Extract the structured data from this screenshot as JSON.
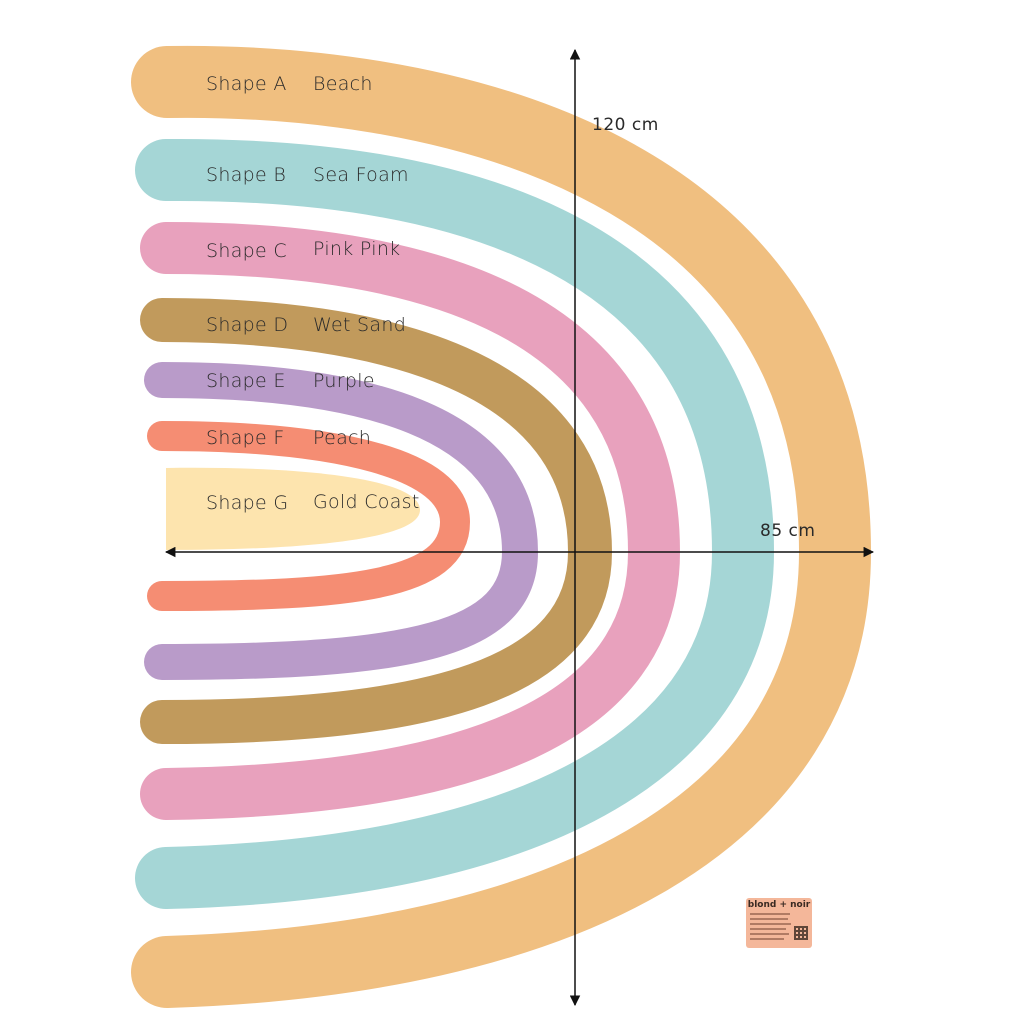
{
  "shapes": [
    {
      "shape": "Shape A",
      "name": "Beach",
      "color": "#f0bf80"
    },
    {
      "shape": "Shape B",
      "name": "Sea Foam",
      "color": "#a5d6d6"
    },
    {
      "shape": "Shape C",
      "name": "Pink Pink",
      "color": "#e8a1bd"
    },
    {
      "shape": "Shape D",
      "name": "Wet Sand",
      "color": "#c19a5c"
    },
    {
      "shape": "Shape E",
      "name": "Purple",
      "color": "#b99bc9"
    },
    {
      "shape": "Shape F",
      "name": "Peach",
      "color": "#f58d73"
    },
    {
      "shape": "Shape G",
      "name": "Gold Coast",
      "color": "#fde4ae"
    }
  ],
  "dimensions": {
    "height": "120 cm",
    "width": "85 cm"
  },
  "brand": {
    "name": "blond + noir",
    "color": "#f4b79a"
  }
}
